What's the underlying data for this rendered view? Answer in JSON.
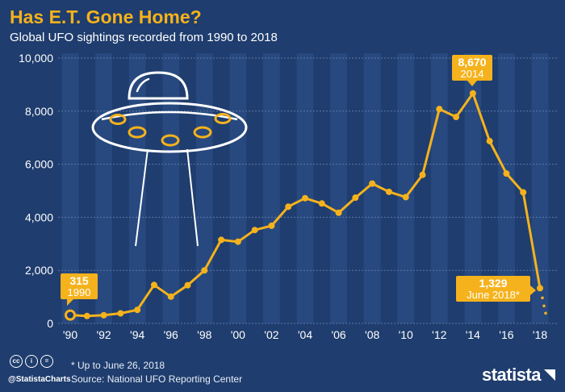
{
  "header": {
    "title": "Has E.T. Gone Home?",
    "subtitle": "Global UFO sightings recorded from 1990 to 2018"
  },
  "footer": {
    "footnote": "* Up to June 26, 2018",
    "source": "Source: National UFO Reporting Center",
    "handle": "@StatistaCharts",
    "brand": "statista",
    "license_icons": [
      "cc",
      "i",
      "="
    ]
  },
  "colors": {
    "background": "#1f3d6e",
    "stripe": "#27497f",
    "line": "#f5b21c",
    "callout": "#f5b21c",
    "text": "#ffffff"
  },
  "illustration": {
    "icon": "ufo-icon"
  },
  "chart_data": {
    "type": "line",
    "title": "Has E.T. Gone Home?",
    "subtitle": "Global UFO sightings recorded from 1990 to 2018",
    "x": [
      1990,
      1991,
      1992,
      1993,
      1994,
      1995,
      1996,
      1997,
      1998,
      1999,
      2000,
      2001,
      2002,
      2003,
      2004,
      2005,
      2006,
      2007,
      2008,
      2009,
      2010,
      2011,
      2012,
      2013,
      2014,
      2015,
      2016,
      2017,
      2018
    ],
    "series": [
      {
        "name": "",
        "values": [
          315,
          280,
          310,
          380,
          510,
          1450,
          1010,
          1440,
          2000,
          3150,
          3080,
          3520,
          3680,
          4400,
          4720,
          4520,
          4170,
          4740,
          5270,
          4960,
          4760,
          5600,
          8080,
          7780,
          8670,
          6870,
          5650,
          4940,
          1329
        ]
      }
    ],
    "ylim": [
      0,
      10000
    ],
    "yticks": [
      0,
      2000,
      4000,
      6000,
      8000,
      10000
    ],
    "ytick_labels": [
      "0",
      "2,000",
      "4,000",
      "6,000",
      "8,000",
      "10,000"
    ],
    "xticks": [
      1990,
      1992,
      1994,
      1996,
      1998,
      2000,
      2002,
      2004,
      2006,
      2008,
      2010,
      2012,
      2014,
      2016,
      2018
    ],
    "xtick_labels": [
      "'90",
      "'92",
      "'94",
      "'96",
      "'98",
      "'00",
      "'02",
      "'04",
      "'06",
      "'08",
      "'10",
      "'12",
      "'14",
      "'16",
      "'18"
    ],
    "grid": true,
    "projection_after_last": true,
    "annotations": [
      {
        "x": 1990,
        "value_label": "315",
        "sub_label": "1990"
      },
      {
        "x": 2014,
        "value_label": "8,670",
        "sub_label": "2014"
      },
      {
        "x": 2018,
        "value_label": "1,329",
        "sub_label": "June 2018*"
      }
    ]
  }
}
